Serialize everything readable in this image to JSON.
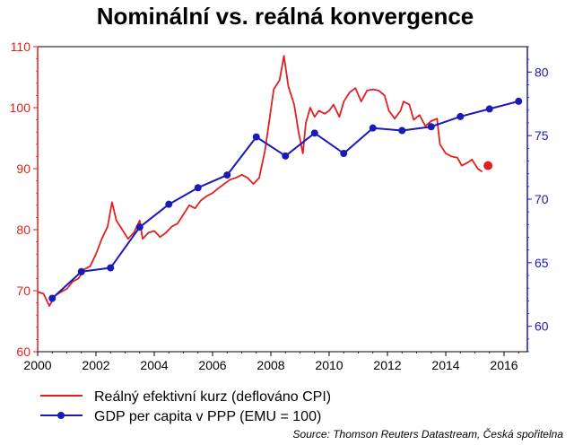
{
  "chart_data": {
    "type": "line",
    "title": "Nominální vs. reálná konvergence",
    "xlabel": "",
    "xlim": [
      2000,
      2016.8
    ],
    "x_ticks": [
      "2000",
      "2002",
      "2004",
      "2006",
      "2008",
      "2010",
      "2012",
      "2014",
      "2016"
    ],
    "y_left": {
      "ylim": [
        60,
        110
      ],
      "ticks": [
        "60",
        "70",
        "80",
        "90",
        "100",
        "110"
      ],
      "color": "#e02020"
    },
    "y_right": {
      "ylim": [
        58,
        82
      ],
      "ticks": [
        "60",
        "65",
        "70",
        "75",
        "80"
      ],
      "color": "#1a1ab8"
    },
    "series": [
      {
        "name": "Reálný efektivní kurz (deflováno CPI)",
        "axis": "left",
        "color": "#e02020",
        "points": [
          [
            2000.0,
            69.8
          ],
          [
            2000.2,
            69.5
          ],
          [
            2000.4,
            67.5
          ],
          [
            2000.6,
            69.2
          ],
          [
            2000.8,
            69.8
          ],
          [
            2001.0,
            70.3
          ],
          [
            2001.2,
            71.5
          ],
          [
            2001.4,
            72.0
          ],
          [
            2001.6,
            73.5
          ],
          [
            2001.8,
            74.0
          ],
          [
            2002.0,
            76.0
          ],
          [
            2002.2,
            78.5
          ],
          [
            2002.4,
            80.5
          ],
          [
            2002.55,
            84.5
          ],
          [
            2002.7,
            81.5
          ],
          [
            2002.9,
            80.0
          ],
          [
            2003.1,
            78.5
          ],
          [
            2003.3,
            79.5
          ],
          [
            2003.5,
            81.5
          ],
          [
            2003.6,
            78.5
          ],
          [
            2003.8,
            79.5
          ],
          [
            2004.0,
            79.8
          ],
          [
            2004.2,
            78.8
          ],
          [
            2004.4,
            79.5
          ],
          [
            2004.6,
            80.5
          ],
          [
            2004.8,
            81.0
          ],
          [
            2005.0,
            82.5
          ],
          [
            2005.2,
            84.0
          ],
          [
            2005.4,
            83.5
          ],
          [
            2005.6,
            84.8
          ],
          [
            2005.8,
            85.5
          ],
          [
            2006.0,
            86.0
          ],
          [
            2006.2,
            86.8
          ],
          [
            2006.4,
            87.5
          ],
          [
            2006.6,
            88.2
          ],
          [
            2006.8,
            88.5
          ],
          [
            2007.0,
            89.0
          ],
          [
            2007.2,
            88.5
          ],
          [
            2007.4,
            87.5
          ],
          [
            2007.6,
            88.5
          ],
          [
            2007.8,
            93.0
          ],
          [
            2007.95,
            98.0
          ],
          [
            2008.1,
            103.0
          ],
          [
            2008.3,
            104.5
          ],
          [
            2008.45,
            108.5
          ],
          [
            2008.6,
            103.5
          ],
          [
            2008.8,
            100.5
          ],
          [
            2008.95,
            96.0
          ],
          [
            2009.1,
            92.5
          ],
          [
            2009.2,
            97.5
          ],
          [
            2009.35,
            100.0
          ],
          [
            2009.5,
            98.5
          ],
          [
            2009.65,
            99.5
          ],
          [
            2009.85,
            99.0
          ],
          [
            2010.0,
            99.5
          ],
          [
            2010.15,
            100.5
          ],
          [
            2010.35,
            98.5
          ],
          [
            2010.5,
            101.0
          ],
          [
            2010.7,
            102.5
          ],
          [
            2010.9,
            103.2
          ],
          [
            2011.1,
            101.0
          ],
          [
            2011.3,
            102.8
          ],
          [
            2011.5,
            103.0
          ],
          [
            2011.7,
            102.8
          ],
          [
            2011.9,
            102.0
          ],
          [
            2012.05,
            99.5
          ],
          [
            2012.25,
            98.2
          ],
          [
            2012.45,
            99.5
          ],
          [
            2012.55,
            101.0
          ],
          [
            2012.75,
            100.5
          ],
          [
            2012.9,
            98.0
          ],
          [
            2013.1,
            98.8
          ],
          [
            2013.3,
            97.0
          ],
          [
            2013.5,
            97.8
          ],
          [
            2013.7,
            98.2
          ],
          [
            2013.8,
            94.0
          ],
          [
            2014.0,
            92.5
          ],
          [
            2014.2,
            92.0
          ],
          [
            2014.4,
            91.8
          ],
          [
            2014.55,
            90.5
          ],
          [
            2014.75,
            91.0
          ],
          [
            2014.9,
            91.5
          ],
          [
            2015.1,
            90.0
          ],
          [
            2015.25,
            89.5
          ]
        ],
        "end_marker": [
          2015.45,
          90.5
        ]
      },
      {
        "name": "GDP per capita v PPP (EMU = 100)",
        "axis": "right",
        "color": "#1a1ab8",
        "points": [
          [
            2000.5,
            62.2
          ],
          [
            2001.5,
            64.3
          ],
          [
            2002.5,
            64.6
          ],
          [
            2003.5,
            67.8
          ],
          [
            2004.5,
            69.6
          ],
          [
            2005.5,
            70.9
          ],
          [
            2006.5,
            71.9
          ],
          [
            2007.5,
            74.9
          ],
          [
            2008.5,
            73.4
          ],
          [
            2009.5,
            75.2
          ],
          [
            2010.5,
            73.6
          ],
          [
            2011.5,
            75.6
          ],
          [
            2012.5,
            75.4
          ],
          [
            2013.5,
            75.7
          ],
          [
            2014.5,
            76.5
          ],
          [
            2015.5,
            77.1
          ],
          [
            2016.5,
            77.7
          ]
        ]
      }
    ],
    "legend": [
      "Reálný efektivní kurz (deflováno CPI)",
      "GDP per capita v PPP (EMU = 100)"
    ],
    "source": "Source: Thomson Reuters Datastream, Česká spořitelna"
  }
}
